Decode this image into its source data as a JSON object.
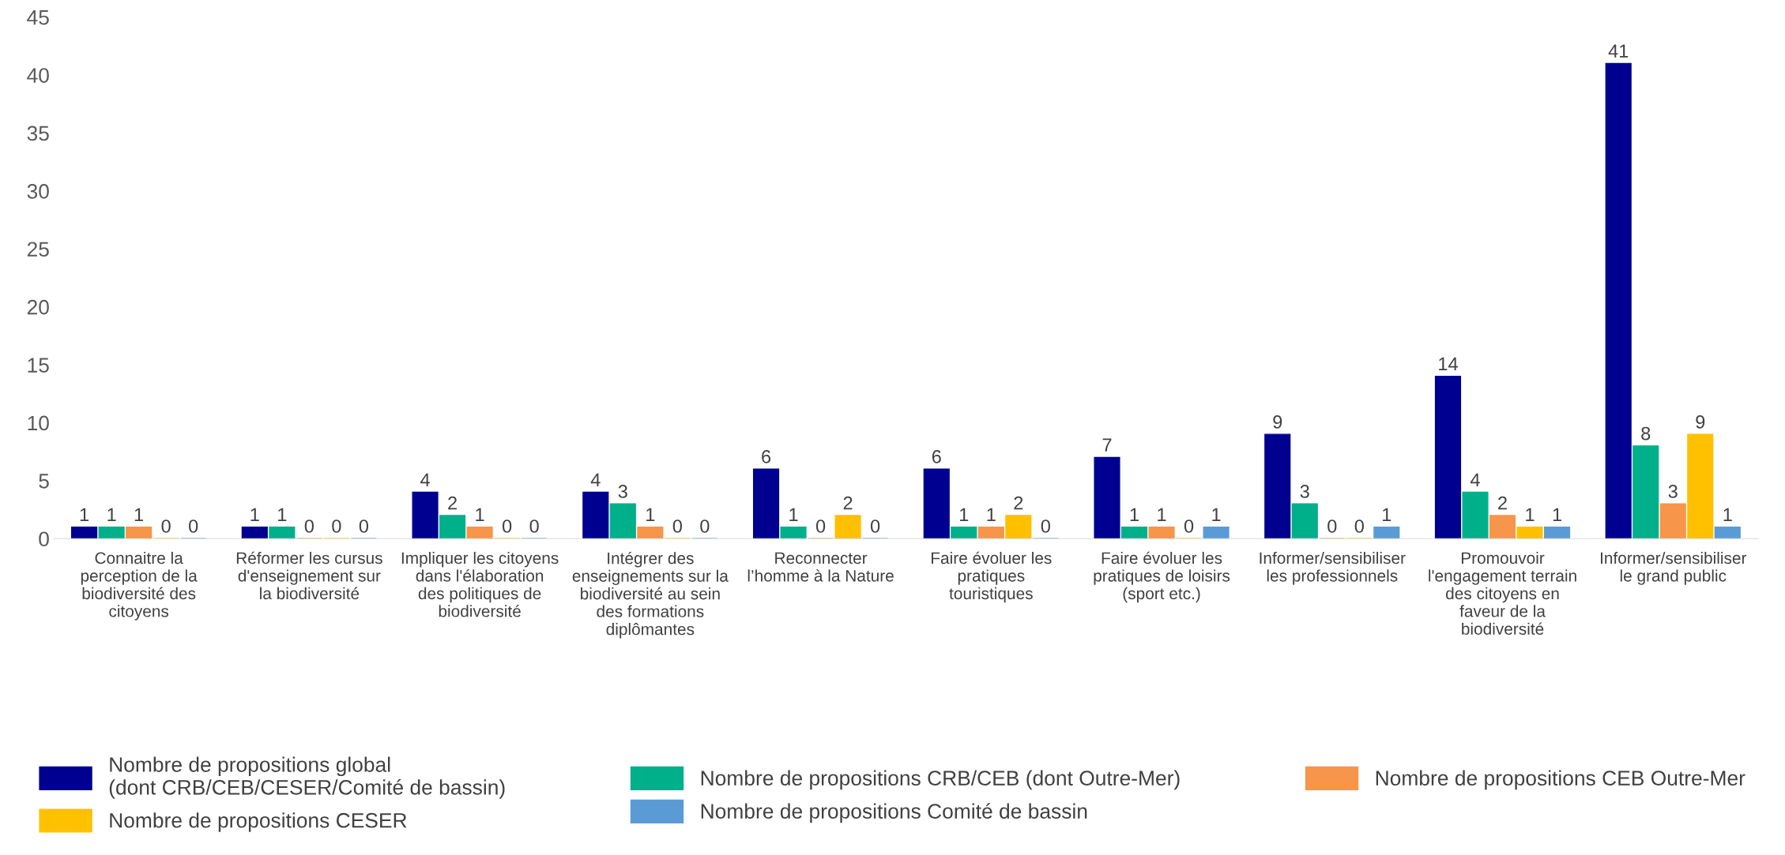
{
  "chart_data": {
    "type": "bar",
    "categories": [
      "Connaitre la\nperception de la\nbiodiversité des\ncitoyens",
      "Réformer les cursus\nd'enseignement sur\nla biodiversité",
      "Impliquer les citoyens\ndans l'élaboration\ndes politiques de\nbiodiversité",
      "Intégrer des\nenseignements sur la\nbiodiversité au sein\ndes formations\ndiplômantes",
      "Reconnecter\nl’homme à la Nature",
      "Faire évoluer les\npratiques\ntouristiques",
      "Faire évoluer les\npratiques de loisirs\n(sport etc.)",
      "Informer/sensibiliser\nles professionnels",
      "Promouvoir\nl'engagement terrain\ndes citoyens en\nfaveur de la\nbiodiversité",
      "Informer/sensibiliser\nle grand public"
    ],
    "series": [
      {
        "name": "Nombre de propositions global\n(dont CRB/CEB/CESER/Comité de bassin)",
        "color": "#000090",
        "values": [
          1,
          1,
          4,
          4,
          6,
          6,
          7,
          9,
          14,
          41
        ]
      },
      {
        "name": "Nombre de propositions CRB/CEB (dont Outre-Mer)",
        "color": "#00b08a",
        "values": [
          1,
          1,
          2,
          3,
          1,
          1,
          1,
          3,
          4,
          8
        ]
      },
      {
        "name": "Nombre de propositions CEB Outre-Mer",
        "color": "#f7954a",
        "values": [
          1,
          0,
          1,
          1,
          0,
          1,
          1,
          0,
          2,
          3
        ]
      },
      {
        "name": "Nombre de propositions CESER",
        "color": "#ffc000",
        "values": [
          0,
          0,
          0,
          0,
          2,
          2,
          0,
          0,
          1,
          9
        ]
      },
      {
        "name": "Nombre de propositions Comité de bassin",
        "color": "#5b9bd5",
        "values": [
          0,
          0,
          0,
          0,
          0,
          0,
          1,
          1,
          1,
          1
        ]
      }
    ],
    "ylim": [
      0,
      45
    ],
    "yticks": [
      0,
      5,
      10,
      15,
      20,
      25,
      30,
      35,
      40,
      45
    ],
    "data_labels": true,
    "grid": false,
    "legend": "bottom"
  }
}
